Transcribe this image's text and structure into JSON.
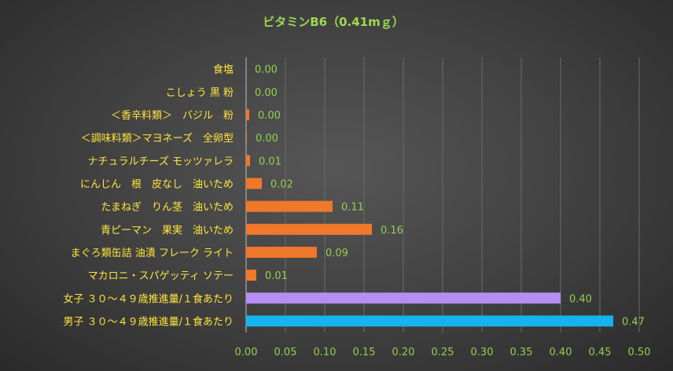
{
  "chart_data": {
    "type": "bar",
    "orientation": "horizontal",
    "title": "ビタミンB6（0.41mｇ）",
    "categories": [
      "食塩",
      "こしょう 黒 粉",
      "＜香辛料類＞　バジル　粉",
      "＜調味料類＞マヨネーズ　全卵型",
      "ナチュラルチーズ モッツァレラ",
      "にんじん　根　皮なし　油いため",
      "たまねぎ　りん茎　油いため",
      "青ピーマン　果実　油いため",
      "まぐろ類缶詰 油漬 フレーク ライト",
      "マカロニ・スパゲッティ ソテー",
      "女子 ３０～４９歳推進量/１食あたり",
      "男子 ３０～４９歳推進量/１食あたり"
    ],
    "values": [
      0.0,
      0.0,
      0.004,
      0.001,
      0.005,
      0.02,
      0.11,
      0.16,
      0.09,
      0.013,
      0.4,
      0.467
    ],
    "value_labels": [
      "0.00",
      "0.00",
      "0.00",
      "0.00",
      "0.01",
      "0.02",
      "0.11",
      "0.16",
      "0.09",
      "0.01",
      "0.40",
      "0.47"
    ],
    "bar_colors": [
      "#f0782a",
      "#f0782a",
      "#f0782a",
      "#f0782a",
      "#f0782a",
      "#f0782a",
      "#f0782a",
      "#f0782a",
      "#f0782a",
      "#f0782a",
      "#b48ef0",
      "#14b4ee"
    ],
    "xlim": [
      0,
      0.5
    ],
    "xticks": [
      "0.00",
      "0.05",
      "0.10",
      "0.15",
      "0.20",
      "0.25",
      "0.30",
      "0.35",
      "0.40",
      "0.45",
      "0.50"
    ],
    "grid": true,
    "legend": "none"
  }
}
